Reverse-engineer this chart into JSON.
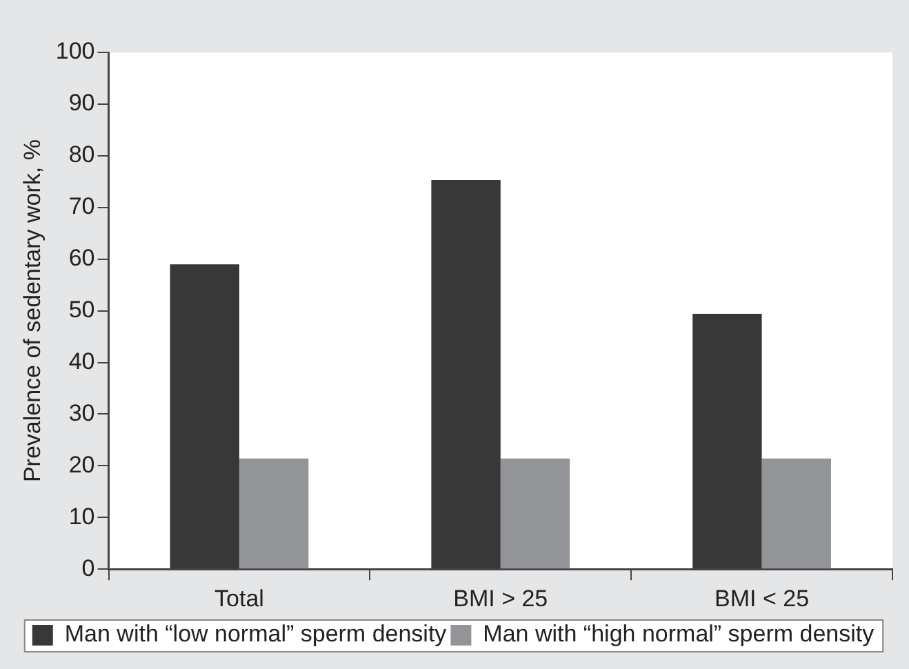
{
  "chart_data": {
    "type": "bar",
    "ylabel": "Prevalence of sedentary work, %",
    "categories": [
      "Total",
      "BMI > 25",
      "BMI < 25"
    ],
    "series": [
      {
        "name": "Man with “low normal” sperm density",
        "color": "#383838",
        "values": [
          59,
          75.3,
          49.4
        ]
      },
      {
        "name": "Man with “high normal” sperm density",
        "color": "#939497",
        "values": [
          21.4,
          21.4,
          21.4
        ]
      }
    ],
    "ylim": [
      0,
      100
    ],
    "yticks": [
      0,
      10,
      20,
      30,
      40,
      50,
      60,
      70,
      80,
      90,
      100
    ],
    "grid": false,
    "legend": "bottom"
  }
}
